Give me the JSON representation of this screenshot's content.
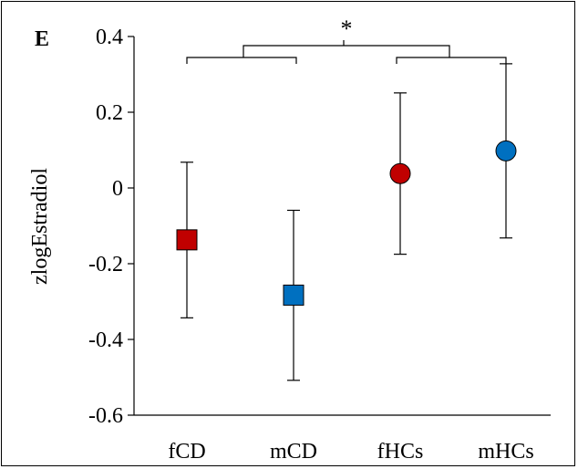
{
  "chart_data": {
    "type": "scatter",
    "panel_label": "E",
    "ylabel": "zlogEstradiol",
    "xlabel": "",
    "ylim": [
      -0.6,
      0.4
    ],
    "yticks": [
      "0.4",
      "0.2",
      "0",
      "-0.2",
      "-0.4",
      "-0.6"
    ],
    "ytick_values": [
      0.4,
      0.2,
      0,
      -0.2,
      -0.4,
      -0.6
    ],
    "categories": [
      "fCD",
      "mCD",
      "fHCs",
      "mHCs"
    ],
    "points": [
      {
        "category": "fCD",
        "mean": -0.137,
        "lower": -0.343,
        "upper": 0.068,
        "marker": "square",
        "color": "#c00000"
      },
      {
        "category": "mCD",
        "mean": -0.283,
        "lower": -0.508,
        "upper": -0.059,
        "marker": "square",
        "color": "#0070c0"
      },
      {
        "category": "fHCs",
        "mean": 0.038,
        "lower": -0.175,
        "upper": 0.251,
        "marker": "circle",
        "color": "#c00000"
      },
      {
        "category": "mHCs",
        "mean": 0.098,
        "lower": -0.132,
        "upper": 0.328,
        "marker": "circle",
        "color": "#0070c0"
      }
    ],
    "significance": {
      "label": "*",
      "groups": [
        [
          "fCD",
          "mCD"
        ],
        [
          "fHCs",
          "mHCs"
        ]
      ]
    },
    "grid": false,
    "legend": "none"
  }
}
